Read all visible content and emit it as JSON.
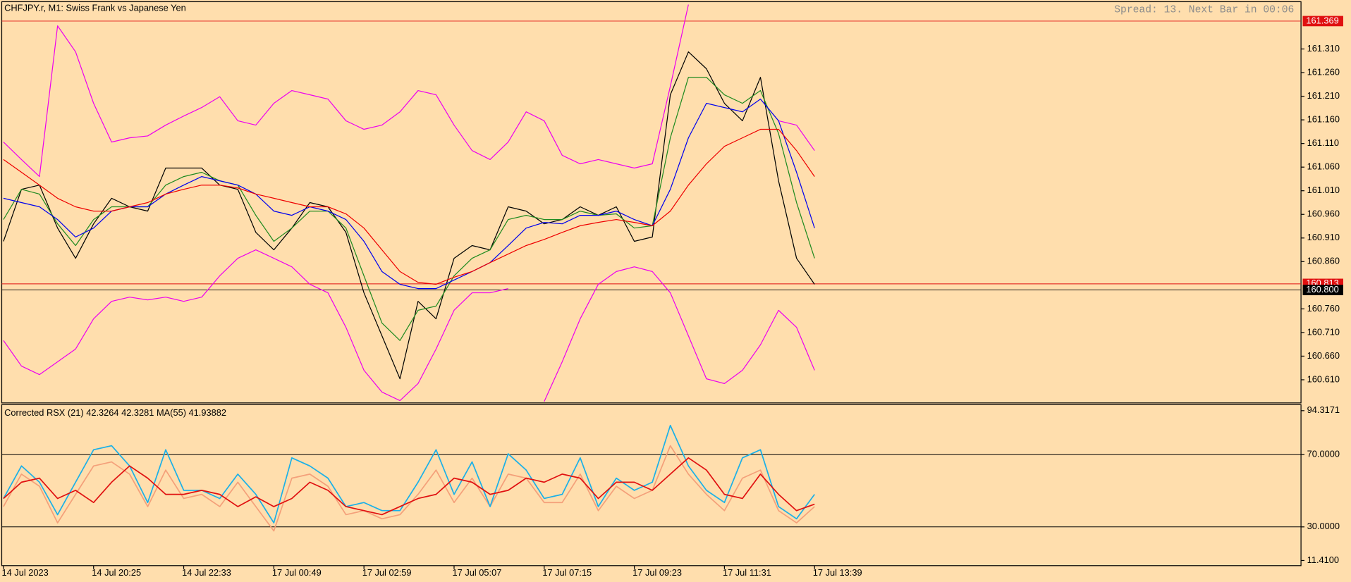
{
  "chart_data": [
    {
      "type": "line",
      "title": "CHFJPY.r, M1:  Swiss Frank vs Japanese Yen",
      "annotation": "Spread: 13. Next Bar in 00:06",
      "categories": [
        "14 Jul 2023",
        null,
        null,
        null,
        null,
        "14 Jul 20:25",
        null,
        null,
        null,
        null,
        "14 Jul 22:33",
        null,
        null,
        null,
        null,
        "17 Jul 00:49",
        null,
        null,
        null,
        null,
        "17 Jul 02:59",
        null,
        null,
        null,
        null,
        "17 Jul 05:07",
        null,
        null,
        null,
        null,
        "17 Jul 07:15",
        null,
        null,
        null,
        null,
        "17 Jul 09:23",
        null,
        null,
        null,
        null,
        "17 Jul 11:31",
        null,
        null,
        null,
        null,
        "17 Jul 13:39"
      ],
      "ylim": [
        160.561,
        161.41
      ],
      "yticks": [
        {
          "value": 161.31,
          "label": "161.310"
        },
        {
          "value": 161.26,
          "label": "161.260"
        },
        {
          "value": 161.21,
          "label": "161.210"
        },
        {
          "value": 161.16,
          "label": "161.160"
        },
        {
          "value": 161.11,
          "label": "161.110"
        },
        {
          "value": 161.06,
          "label": "161.060"
        },
        {
          "value": 161.01,
          "label": "161.010"
        },
        {
          "value": 160.96,
          "label": "160.960"
        },
        {
          "value": 160.91,
          "label": "160.910"
        },
        {
          "value": 160.86,
          "label": "160.860"
        },
        {
          "value": 160.76,
          "label": "160.760"
        },
        {
          "value": 160.71,
          "label": "160.710"
        },
        {
          "value": 160.66,
          "label": "160.660"
        },
        {
          "value": 160.61,
          "label": "160.610"
        }
      ],
      "hlines": [
        {
          "value": 161.369,
          "label": "161.369",
          "color": "#e01010"
        },
        {
          "value": 160.813,
          "label": "160.813",
          "color": "#e01010"
        },
        {
          "value": 160.8,
          "label": "160.800",
          "color": "#000000"
        }
      ],
      "series": [
        {
          "color": "#000000",
          "values": [
            160.903,
            161.013,
            161.022,
            160.931,
            160.867,
            160.94,
            160.994,
            160.976,
            160.967,
            161.058,
            161.058,
            161.058,
            161.022,
            161.013,
            160.922,
            160.885,
            160.931,
            160.985,
            160.976,
            160.922,
            160.794,
            160.703,
            160.612,
            160.776,
            160.739,
            160.867,
            160.894,
            160.885,
            160.976,
            160.967,
            160.94,
            160.949,
            160.976,
            160.958,
            160.976,
            160.903,
            160.912,
            161.213,
            161.304,
            161.268,
            161.195,
            161.158,
            161.25,
            161.031,
            160.867,
            160.812
          ]
        },
        {
          "color": "#ee00ee",
          "values": [
            161.113,
            161.076,
            161.04,
            161.359,
            161.304,
            161.195,
            161.113,
            161.122,
            161.126,
            161.149,
            161.168,
            161.186,
            161.209,
            161.158,
            161.149,
            161.195,
            161.222,
            161.213,
            161.204,
            161.158,
            161.14,
            161.149,
            161.177,
            161.222,
            161.213,
            161.149,
            161.095,
            161.076,
            161.113,
            161.177,
            161.158,
            161.085,
            161.067,
            161.076,
            161.067,
            161.058,
            161.067,
            161.231,
            161.404,
            null,
            null,
            null,
            null,
            161.158,
            161.149,
            161.095
          ]
        },
        {
          "color": "#ee00ee",
          "values": [
            160.693,
            160.639,
            160.621,
            160.648,
            160.675,
            160.739,
            160.776,
            160.785,
            160.779,
            160.785,
            160.776,
            160.785,
            160.83,
            160.867,
            160.885,
            160.867,
            160.849,
            160.812,
            160.794,
            160.721,
            160.63,
            160.584,
            160.566,
            160.602,
            160.675,
            160.757,
            160.794,
            160.794,
            160.803,
            null,
            160.564,
            160.648,
            160.739,
            160.812,
            160.839,
            160.849,
            160.839,
            160.794,
            160.703,
            160.612,
            160.602,
            160.63,
            160.684,
            160.757,
            160.721,
            160.63
          ]
        },
        {
          "color": "#1f8a1f",
          "values": [
            160.949,
            161.013,
            161.003,
            160.94,
            160.894,
            160.949,
            160.976,
            160.976,
            160.976,
            161.022,
            161.04,
            161.049,
            161.031,
            161.022,
            160.958,
            160.903,
            160.931,
            160.967,
            160.967,
            160.931,
            160.83,
            160.73,
            160.693,
            160.757,
            160.766,
            160.83,
            160.867,
            160.885,
            160.949,
            160.958,
            160.949,
            160.949,
            160.967,
            160.958,
            160.961,
            160.931,
            160.936,
            161.122,
            161.25,
            161.25,
            161.213,
            161.195,
            161.222,
            161.131,
            160.985,
            160.867
          ]
        },
        {
          "color": "#0000ee",
          "values": [
            160.994,
            160.985,
            160.976,
            160.949,
            160.912,
            160.931,
            160.967,
            160.976,
            160.976,
            161.003,
            161.022,
            161.04,
            161.031,
            161.022,
            161.003,
            160.967,
            160.958,
            160.976,
            160.967,
            160.949,
            160.903,
            160.839,
            160.812,
            160.803,
            160.803,
            160.821,
            160.839,
            160.858,
            160.894,
            160.931,
            160.943,
            160.94,
            160.958,
            160.958,
            160.967,
            160.949,
            160.936,
            161.013,
            161.122,
            161.195,
            161.186,
            161.177,
            161.204,
            161.158,
            161.049,
            160.931
          ]
        },
        {
          "color": "#ee0000",
          "values": [
            161.076,
            161.049,
            161.022,
            160.994,
            160.976,
            160.967,
            160.967,
            160.976,
            160.985,
            161.003,
            161.013,
            161.022,
            161.022,
            161.016,
            161.003,
            160.994,
            160.985,
            160.976,
            160.976,
            160.961,
            160.931,
            160.885,
            160.839,
            160.816,
            160.812,
            160.827,
            160.839,
            160.858,
            160.876,
            160.894,
            160.907,
            160.922,
            160.936,
            160.943,
            160.949,
            160.943,
            160.936,
            160.967,
            161.022,
            161.067,
            161.104,
            161.122,
            161.14,
            161.14,
            161.095,
            161.04
          ]
        }
      ]
    },
    {
      "type": "line",
      "title": "Corrected RSX (21) 42.3264 42.3281 MA(55) 41.93882",
      "ylim": [
        11.41,
        94.3171
      ],
      "yticks": [
        {
          "value": 94.3171,
          "label": "94.3171"
        },
        {
          "value": 70,
          "label": "70.0000"
        },
        {
          "value": 30,
          "label": "30.0000"
        },
        {
          "value": 11.41,
          "label": "11.4100"
        }
      ],
      "levels": [
        70,
        30
      ],
      "series": [
        {
          "color": "#f4a07a",
          "values": [
            41.24,
            59.21,
            52.47,
            32.25,
            47.98,
            63.71,
            65.96,
            59.21,
            41.24,
            61.46,
            45.73,
            47.98,
            41.24,
            54.72,
            41.24,
            27.75,
            56.97,
            59.21,
            52.47,
            36.74,
            38.99,
            34.49,
            36.74,
            47.98,
            61.46,
            43.48,
            56.97,
            41.24,
            59.21,
            56.97,
            43.48,
            43.48,
            59.21,
            38.99,
            52.47,
            45.73,
            50.22,
            74.94,
            59.21,
            47.98,
            38.99,
            56.97,
            61.46,
            38.99,
            32.25,
            41.24
          ]
        },
        {
          "color": "#1ab0e8",
          "values": [
            45.73,
            63.71,
            54.72,
            36.74,
            54.72,
            72.7,
            74.94,
            63.71,
            43.48,
            72.7,
            50.22,
            50.22,
            45.73,
            59.21,
            47.98,
            32.25,
            68.2,
            63.71,
            56.97,
            41.24,
            43.48,
            38.99,
            38.99,
            54.72,
            72.7,
            47.98,
            65.96,
            41.24,
            70.45,
            61.46,
            45.73,
            47.98,
            68.2,
            41.24,
            56.97,
            50.22,
            54.72,
            86.18,
            63.71,
            50.22,
            43.48,
            68.2,
            72.7,
            41.24,
            34.49,
            47.98
          ]
        },
        {
          "color": "#e01010",
          "values": [
            45.73,
            54.72,
            56.97,
            45.73,
            50.22,
            43.48,
            54.72,
            63.71,
            56.97,
            47.98,
            47.98,
            50.22,
            47.98,
            41.24,
            46.63,
            41.24,
            45.73,
            54.72,
            50.22,
            41.24,
            38.99,
            36.74,
            41.24,
            45.73,
            47.98,
            56.97,
            54.72,
            47.98,
            50.22,
            56.97,
            54.72,
            59.21,
            56.97,
            45.73,
            54.72,
            54.72,
            50.22,
            59.21,
            68.2,
            61.46,
            47.98,
            45.73,
            59.21,
            47.98,
            38.99,
            42.58
          ]
        }
      ]
    }
  ]
}
